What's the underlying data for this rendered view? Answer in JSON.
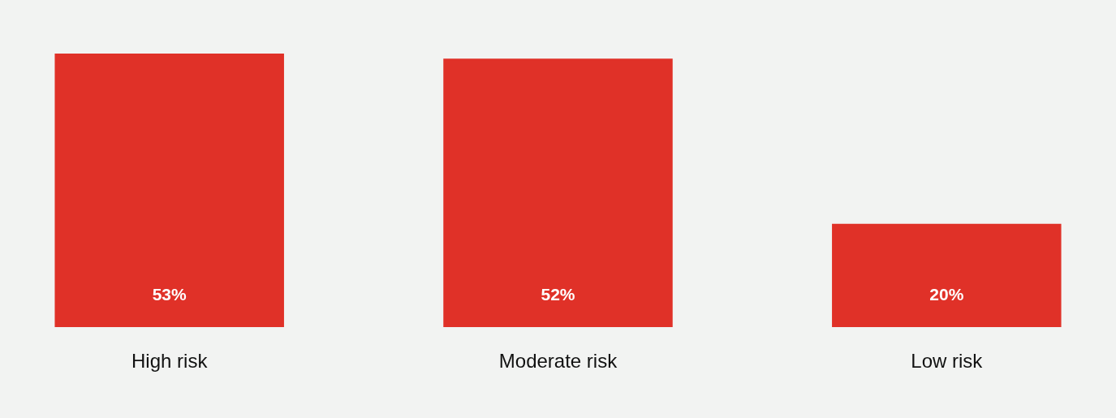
{
  "chart_data": {
    "type": "bar",
    "categories": [
      "High risk",
      "Moderate risk",
      "Low risk"
    ],
    "values": [
      53,
      52,
      20
    ],
    "value_labels": [
      "53%",
      "52%",
      "20%"
    ],
    "color": "#e03128",
    "grid": false
  }
}
